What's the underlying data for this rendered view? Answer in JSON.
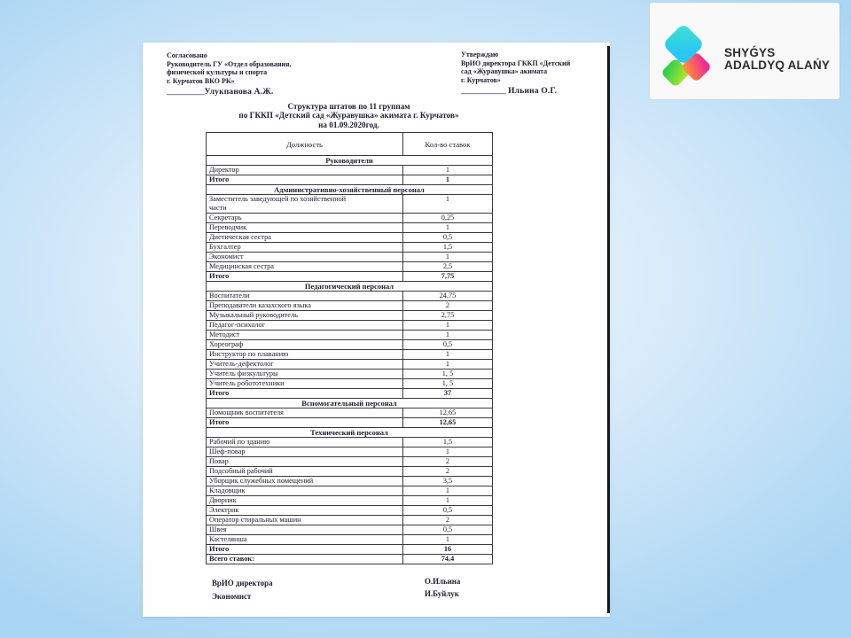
{
  "background": {
    "sky_center": "#f2f8fe",
    "sky_edge": "#abd6f3"
  },
  "logo": {
    "card_bg": "#f9f9f9",
    "line1": "SHYǴYS",
    "line2": "ADALDYQ ALAŃY",
    "text_color": "#2c2c2c",
    "diamond_colors": {
      "cyan_from": "#3fe3c9",
      "cyan_to": "#29c6f6",
      "green_from": "#2fcf4e",
      "green_to": "#b3e32c",
      "pink_from": "#ff9a2e",
      "pink_to": "#f32b94"
    }
  },
  "document": {
    "approval_left": {
      "title": "Согласовано",
      "lines": [
        "Руководитель ГУ «Отдел образования,",
        "физической культуры и спорта",
        "г. Курчатов ВКО РК»"
      ],
      "sig_line": "__________",
      "sig_name": "Улукпанова А.Ж."
    },
    "approval_right": {
      "title": "Утверждаю",
      "lines": [
        "ВрИО директора ГККП «Детский",
        "сад «Журавушка» акимата",
        "г. Курчатов»"
      ],
      "sig_line": "____________ ",
      "sig_name": "Ильина О.Г."
    },
    "title": {
      "line1": "Структура штатов по 11 группам",
      "line2": "по ГККП «Детский сад «Журавушка» акимата г. Курчатов»",
      "line3": "на 01.09.2020год."
    },
    "table": {
      "col1_header": "Должность",
      "col2_header": "Кол-во ставок",
      "rows": [
        {
          "type": "section",
          "label": "Руководители"
        },
        {
          "type": "item",
          "label": "Директор",
          "value": "1"
        },
        {
          "type": "total",
          "label": "Итого",
          "value": "1"
        },
        {
          "type": "section",
          "label": "Административно-хозяйственный персонал"
        },
        {
          "type": "item",
          "label": "Заместитель заведующей по хозяйственной части",
          "value": "1"
        },
        {
          "type": "item",
          "label": "Секретарь",
          "value": "0,25"
        },
        {
          "type": "item",
          "label": "Переводчик",
          "value": "1"
        },
        {
          "type": "item",
          "label": "Диетическая сестра",
          "value": "0,5"
        },
        {
          "type": "item",
          "label": "Бухгалтер",
          "value": "1,5"
        },
        {
          "type": "item",
          "label": "Экономист",
          "value": "1"
        },
        {
          "type": "item",
          "label": "Медицинская сестра",
          "value": "2,5"
        },
        {
          "type": "total",
          "label": "Итого",
          "value": "7,75"
        },
        {
          "type": "section",
          "label": "Педагогический персонал"
        },
        {
          "type": "item",
          "label": "Воспитатели",
          "value": "24,75"
        },
        {
          "type": "item",
          "label": "Преподаватели казахского языка",
          "value": "2"
        },
        {
          "type": "item",
          "label": "Музыкальный руководитель",
          "value": "2,75"
        },
        {
          "type": "item",
          "label": "Педагог-психолог",
          "value": "1"
        },
        {
          "type": "item",
          "label": "Методист",
          "value": "1"
        },
        {
          "type": "item",
          "label": "Хореограф",
          "value": "0,5"
        },
        {
          "type": "item",
          "label": "Инструктор по плаванию",
          "value": "1"
        },
        {
          "type": "item",
          "label": "Учитель-дефектолог",
          "value": "1"
        },
        {
          "type": "item",
          "label": "Учитель физкультуры",
          "value": "1, 5"
        },
        {
          "type": "item",
          "label": "Учитель робототехники",
          "value": "1, 5"
        },
        {
          "type": "total",
          "label": "Итого",
          "value": "37"
        },
        {
          "type": "section",
          "label": "Вспомогательный персонал"
        },
        {
          "type": "item",
          "label": "Помощник воспитателя",
          "value": "12,65"
        },
        {
          "type": "total",
          "label": "Итого",
          "value": "12,65"
        },
        {
          "type": "section",
          "label": "Технический персонал"
        },
        {
          "type": "item",
          "label": "Рабочий по зданию",
          "value": "1,5"
        },
        {
          "type": "item",
          "label": "Шеф-повар",
          "value": "1"
        },
        {
          "type": "item",
          "label": "Повар",
          "value": "2"
        },
        {
          "type": "item",
          "label": "Подсобный рабочий",
          "value": "2"
        },
        {
          "type": "item",
          "label": "Уборщик служебных помещений",
          "value": "3,5"
        },
        {
          "type": "item",
          "label": "Кладовщик",
          "value": "1"
        },
        {
          "type": "item",
          "label": "Дворник",
          "value": "1"
        },
        {
          "type": "item",
          "label": "Электрик",
          "value": "0,5"
        },
        {
          "type": "item",
          "label": "Оператор стиральных машин",
          "value": "2"
        },
        {
          "type": "item",
          "label": "Швея",
          "value": "0,5"
        },
        {
          "type": "item",
          "label": "Кастелянша",
          "value": "1"
        },
        {
          "type": "total",
          "label": "Итого",
          "value": "16"
        },
        {
          "type": "grand",
          "label": "Всего ставок:",
          "value": "74,4"
        }
      ]
    },
    "footer": {
      "left_lines": [
        "ВрИО директора",
        "Экономист"
      ],
      "right_lines": [
        "О.Ильина",
        "И.Буйлук"
      ]
    }
  }
}
